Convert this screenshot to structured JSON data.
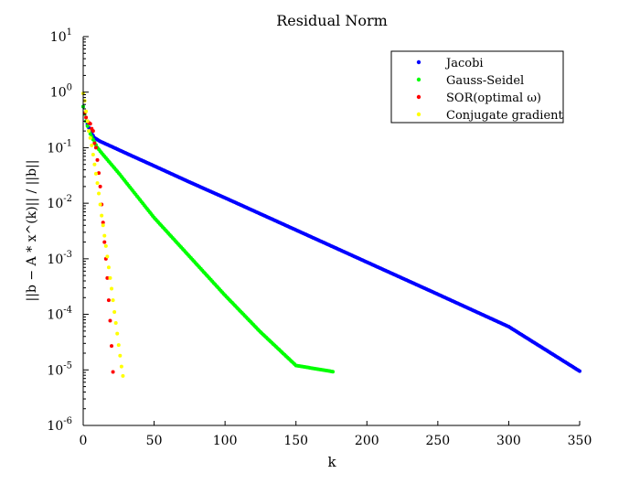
{
  "chart_data": {
    "type": "scatter",
    "title": "Residual Norm",
    "xlabel": "k",
    "ylabel": "||b − A * x^(k)|| / ||b||",
    "xlim": [
      0,
      350
    ],
    "ylim": [
      1e-06,
      10
    ],
    "yscale": "log",
    "x_ticks": [
      0,
      50,
      100,
      150,
      200,
      250,
      300,
      350
    ],
    "y_tick_exponents": [
      -6,
      -5,
      -4,
      -3,
      -2,
      -1,
      0,
      1
    ],
    "y_tick_base": "10",
    "legend_position": "top-right",
    "grid": false,
    "series": [
      {
        "name": "Jacobi",
        "color": "#0000ff",
        "points": [
          [
            0,
            0.55
          ],
          [
            2,
            0.3
          ],
          [
            5,
            0.2
          ],
          [
            8,
            0.15
          ],
          [
            12,
            0.13
          ],
          [
            20,
            0.105
          ],
          [
            30,
            0.08
          ],
          [
            50,
            0.047
          ],
          [
            75,
            0.024
          ],
          [
            100,
            0.0125
          ],
          [
            150,
            0.0033
          ],
          [
            200,
            0.00087
          ],
          [
            250,
            0.00023
          ],
          [
            300,
            6e-05
          ],
          [
            350,
            9.5e-06
          ]
        ]
      },
      {
        "name": "Gauss-Seidel",
        "color": "#00ff00",
        "points": [
          [
            0,
            0.55
          ],
          [
            2,
            0.3
          ],
          [
            4,
            0.2
          ],
          [
            7,
            0.14
          ],
          [
            10,
            0.1
          ],
          [
            15,
            0.07
          ],
          [
            25,
            0.035
          ],
          [
            50,
            0.0055
          ],
          [
            75,
            0.0011
          ],
          [
            100,
            0.00022
          ],
          [
            125,
            4.8e-05
          ],
          [
            150,
            1.2e-05
          ],
          [
            176,
            9.3e-06
          ]
        ]
      },
      {
        "name": "SOR(optimal ω)",
        "color": "#ff0000",
        "points": [
          [
            1,
            0.42
          ],
          [
            2,
            0.35
          ],
          [
            3,
            0.3
          ],
          [
            4,
            0.28
          ],
          [
            5,
            0.27
          ],
          [
            6,
            0.22
          ],
          [
            7,
            0.2
          ],
          [
            8,
            0.12
          ],
          [
            9,
            0.1
          ],
          [
            10,
            0.06
          ],
          [
            11,
            0.035
          ],
          [
            12,
            0.02
          ],
          [
            13,
            0.0095
          ],
          [
            14,
            0.0045
          ],
          [
            15,
            0.002
          ],
          [
            16,
            0.001
          ],
          [
            17,
            0.00045
          ],
          [
            18,
            0.00018
          ],
          [
            19,
            7.7e-05
          ],
          [
            20,
            2.7e-05
          ],
          [
            21,
            9.2e-06
          ]
        ]
      },
      {
        "name": "Conjugate gradient",
        "color": "#ffff00",
        "points": [
          [
            0,
            0.95
          ],
          [
            1,
            0.7
          ],
          [
            2,
            0.45
          ],
          [
            3,
            0.3
          ],
          [
            4,
            0.2
          ],
          [
            5,
            0.15
          ],
          [
            6,
            0.11
          ],
          [
            7,
            0.075
          ],
          [
            8,
            0.05
          ],
          [
            9,
            0.034
          ],
          [
            10,
            0.023
          ],
          [
            11,
            0.015
          ],
          [
            12,
            0.0095
          ],
          [
            13,
            0.006
          ],
          [
            14,
            0.004
          ],
          [
            15,
            0.0026
          ],
          [
            16,
            0.0017
          ],
          [
            17,
            0.0011
          ],
          [
            18,
            0.0007
          ],
          [
            19,
            0.00045
          ],
          [
            20,
            0.00029
          ],
          [
            21,
            0.00018
          ],
          [
            22,
            0.00011
          ],
          [
            23,
            7e-05
          ],
          [
            24,
            4.5e-05
          ],
          [
            25,
            2.8e-05
          ],
          [
            26,
            1.8e-05
          ],
          [
            27,
            1.15e-05
          ],
          [
            28,
            7.8e-06
          ]
        ]
      }
    ]
  }
}
